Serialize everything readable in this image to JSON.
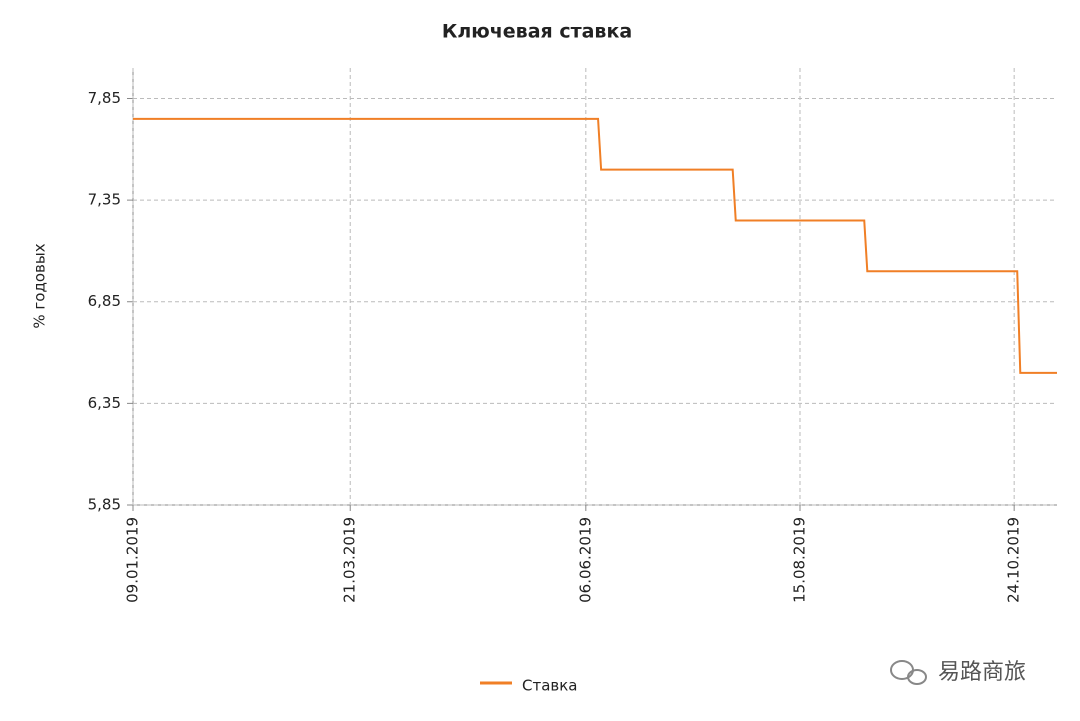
{
  "chart_data": {
    "type": "line",
    "title": "Ключевая ставка",
    "y_label": "% годовых",
    "x": [
      "09.01.2019",
      "10.06.2019",
      "11.06.2019",
      "24.07.2019",
      "25.07.2019",
      "05.09.2019",
      "06.09.2019",
      "25.10.2019",
      "26.10.2019",
      "07.11.2019"
    ],
    "series": [
      {
        "name": "Ставка",
        "color": "#f07f26",
        "values": [
          7.75,
          7.75,
          7.5,
          7.5,
          7.25,
          7.25,
          7.0,
          7.0,
          6.5,
          6.5
        ]
      }
    ],
    "xlim": [
      "09.01.2019",
      "07.11.2019"
    ],
    "xticks": [
      "09.01.2019",
      "21.03.2019",
      "06.06.2019",
      "15.08.2019",
      "24.10.2019"
    ],
    "ylim": [
      5.85,
      8.0
    ],
    "yticks": [
      {
        "value": 5.85,
        "label": "5,85"
      },
      {
        "value": 6.35,
        "label": "6,35"
      },
      {
        "value": 6.85,
        "label": "6,85"
      },
      {
        "value": 7.35,
        "label": "7,35"
      },
      {
        "value": 7.85,
        "label": "7,85"
      }
    ],
    "grid": true,
    "legend": "bottom"
  },
  "watermark": "易路商旅"
}
